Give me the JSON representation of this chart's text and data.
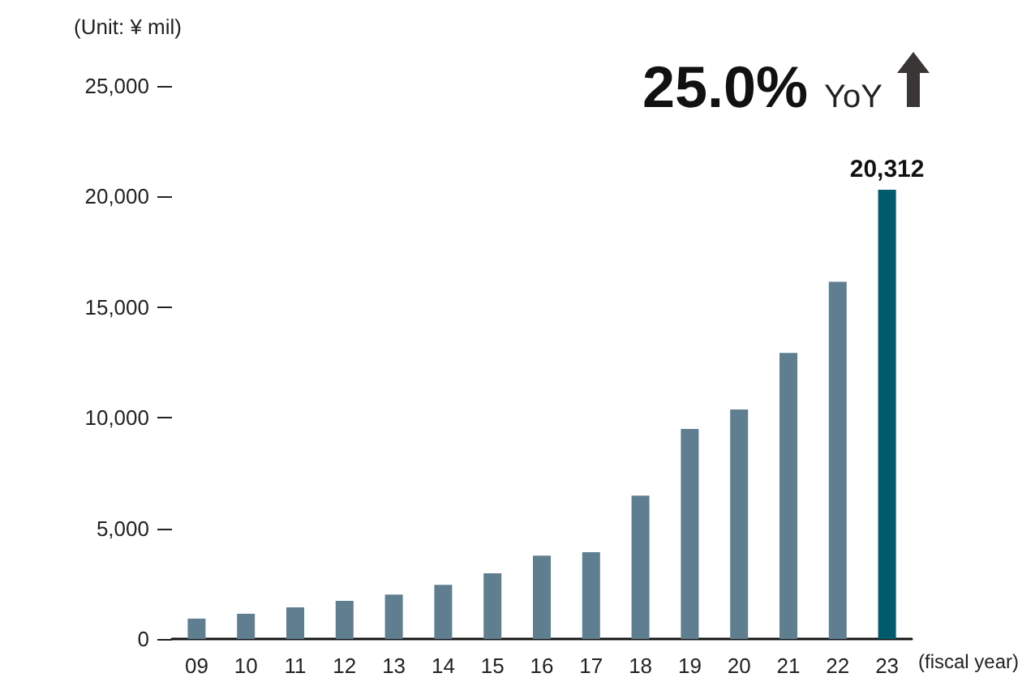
{
  "chart_data": {
    "type": "bar",
    "ylabel": "(Unit: ¥ mil)",
    "xlabel": "(fiscal year)",
    "categories": [
      "09",
      "10",
      "11",
      "12",
      "13",
      "14",
      "15",
      "16",
      "17",
      "18",
      "19",
      "20",
      "21",
      "22",
      "23"
    ],
    "values": [
      920,
      1140,
      1430,
      1720,
      2010,
      2450,
      2970,
      3770,
      3920,
      6480,
      9490,
      10370,
      12930,
      16150,
      20312
    ],
    "colors": [
      "#5f7f91",
      "#5f7f91",
      "#5f7f91",
      "#5f7f91",
      "#5f7f91",
      "#5f7f91",
      "#5f7f91",
      "#5f7f91",
      "#5f7f91",
      "#5f7f91",
      "#5f7f91",
      "#5f7f91",
      "#5f7f91",
      "#5f7f91",
      "#005a6e"
    ],
    "value_labels": [
      null,
      null,
      null,
      null,
      null,
      null,
      null,
      null,
      null,
      null,
      null,
      null,
      null,
      null,
      "20,312"
    ],
    "ylim": [
      0,
      25000
    ],
    "yticks": [
      0,
      {
        "value": 5000,
        "label": "5,000"
      },
      {
        "value": 10000,
        "label": "10,000"
      },
      {
        "value": 15000,
        "label": "15,000"
      },
      {
        "value": 20000,
        "label": "20,000"
      },
      {
        "value": 25000,
        "label": "25,000"
      }
    ],
    "annotations": [
      "25.0% YoY"
    ],
    "grid": false
  }
}
